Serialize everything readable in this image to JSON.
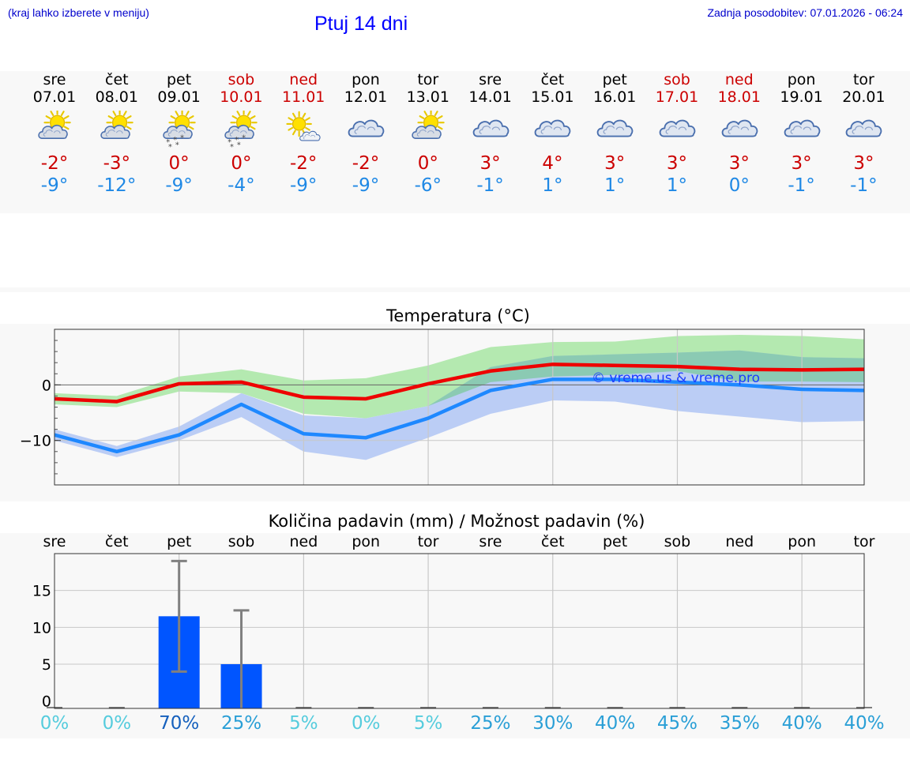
{
  "header": {
    "hint": "(kraj lahko izberete v meniju)",
    "title": "Ptuj 14 dni",
    "updated": "Zadnja posodobitev: 07.01.2026 - 06:24"
  },
  "days": [
    {
      "name": "sre",
      "date": "07.01",
      "weekend": false,
      "icon": "sun-cloud-icon",
      "max": "-2°",
      "min": "-9°"
    },
    {
      "name": "čet",
      "date": "08.01",
      "weekend": false,
      "icon": "sun-cloud-icon",
      "max": "-3°",
      "min": "-12°"
    },
    {
      "name": "pet",
      "date": "09.01",
      "weekend": false,
      "icon": "sun-cloud-snow-icon",
      "max": "0°",
      "min": "-9°"
    },
    {
      "name": "sob",
      "date": "10.01",
      "weekend": true,
      "icon": "sun-cloud-snow-icon",
      "max": "0°",
      "min": "-4°"
    },
    {
      "name": "ned",
      "date": "11.01",
      "weekend": true,
      "icon": "sun-small-cloud-icon",
      "max": "-2°",
      "min": "-9°"
    },
    {
      "name": "pon",
      "date": "12.01",
      "weekend": false,
      "icon": "cloud-icon",
      "max": "-2°",
      "min": "-9°"
    },
    {
      "name": "tor",
      "date": "13.01",
      "weekend": false,
      "icon": "sun-cloud-icon",
      "max": "0°",
      "min": "-6°"
    },
    {
      "name": "sre",
      "date": "14.01",
      "weekend": false,
      "icon": "cloud-icon",
      "max": "3°",
      "min": "-1°"
    },
    {
      "name": "čet",
      "date": "15.01",
      "weekend": false,
      "icon": "cloud-icon",
      "max": "4°",
      "min": "1°"
    },
    {
      "name": "pet",
      "date": "16.01",
      "weekend": false,
      "icon": "cloud-icon",
      "max": "3°",
      "min": "1°"
    },
    {
      "name": "sob",
      "date": "17.01",
      "weekend": true,
      "icon": "cloud-icon",
      "max": "3°",
      "min": "1°"
    },
    {
      "name": "ned",
      "date": "18.01",
      "weekend": true,
      "icon": "cloud-icon",
      "max": "3°",
      "min": "0°"
    },
    {
      "name": "pon",
      "date": "19.01",
      "weekend": false,
      "icon": "cloud-icon",
      "max": "3°",
      "min": "-1°"
    },
    {
      "name": "tor",
      "date": "20.01",
      "weekend": false,
      "icon": "cloud-icon",
      "max": "3°",
      "min": "-1°"
    }
  ],
  "colors": {
    "max_line": "#ee0000",
    "min_line": "#1e88ff",
    "max_band": "#a8e6a3",
    "min_band": "#b0c6f5",
    "overlap_band": "#7fc9a0",
    "bar": "#0055ff",
    "error": "#808080",
    "pct_low": "#55ccdd",
    "pct_mid": "#2a9fd6",
    "pct_high": "#1560bd"
  },
  "chart_data": [
    {
      "type": "line",
      "title": "Temperatura (°C)",
      "ylabel": "",
      "ylim": [
        -18,
        10
      ],
      "yticks": [
        0,
        -10
      ],
      "x": [
        "07.01",
        "08.01",
        "09.01",
        "10.01",
        "11.01",
        "12.01",
        "13.01",
        "14.01",
        "15.01",
        "16.01",
        "17.01",
        "18.01",
        "19.01",
        "20.01"
      ],
      "watermark": "© vreme.us & vreme.pro",
      "series": [
        {
          "name": "max",
          "values": [
            -2.5,
            -3,
            0.2,
            0.5,
            -2.2,
            -2.5,
            0.2,
            2.5,
            3.7,
            3.5,
            3.3,
            2.8,
            2.7,
            2.8
          ],
          "band_low": [
            -3.5,
            -4,
            -1.2,
            -1.5,
            -5.2,
            -6,
            -3.8,
            0.5,
            1.5,
            1.8,
            2.5,
            0.6,
            0.6,
            0.5
          ],
          "band_high": [
            -1.5,
            -2,
            1.5,
            2.8,
            0.8,
            1.2,
            3.5,
            6.8,
            7.7,
            7.8,
            8.8,
            9,
            8.8,
            8.2
          ]
        },
        {
          "name": "min",
          "values": [
            -9,
            -12,
            -9,
            -3.5,
            -8.8,
            -9.5,
            -6,
            -1,
            1,
            1,
            0.5,
            0,
            -0.8,
            -1
          ],
          "band_low": [
            -10,
            -13,
            -10,
            -5.8,
            -12,
            -13.5,
            -9.5,
            -5.2,
            -2.8,
            -3,
            -4.7,
            -5.7,
            -6.7,
            -6.5
          ],
          "band_high": [
            -8,
            -11,
            -7.5,
            -1.5,
            -5.5,
            -6,
            -3.8,
            3.2,
            5.2,
            5.5,
            5.8,
            6.2,
            5,
            4.8
          ]
        }
      ]
    },
    {
      "type": "bar",
      "title": "Količina padavin (mm) / Možnost padavin (%)",
      "categories": [
        "sre",
        "čet",
        "pet",
        "sob",
        "ned",
        "pon",
        "tor",
        "sre",
        "čet",
        "pet",
        "sob",
        "ned",
        "pon",
        "tor"
      ],
      "values": [
        0,
        0,
        11.5,
        5,
        0,
        0,
        0,
        0,
        0,
        0,
        0,
        0,
        0,
        0
      ],
      "error_low": [
        0,
        0,
        4,
        0,
        0,
        0,
        0,
        0,
        0,
        0,
        0,
        0,
        0,
        0
      ],
      "error_high": [
        0,
        0,
        19,
        12.3,
        0,
        0,
        0,
        0,
        0,
        0,
        0,
        0,
        0,
        0
      ],
      "ylim": [
        -1,
        20
      ],
      "yticks": [
        0,
        5,
        10,
        15
      ],
      "probability": [
        "0%",
        "0%",
        "70%",
        "25%",
        "5%",
        "0%",
        "5%",
        "25%",
        "30%",
        "40%",
        "45%",
        "35%",
        "40%",
        "40%"
      ]
    }
  ]
}
